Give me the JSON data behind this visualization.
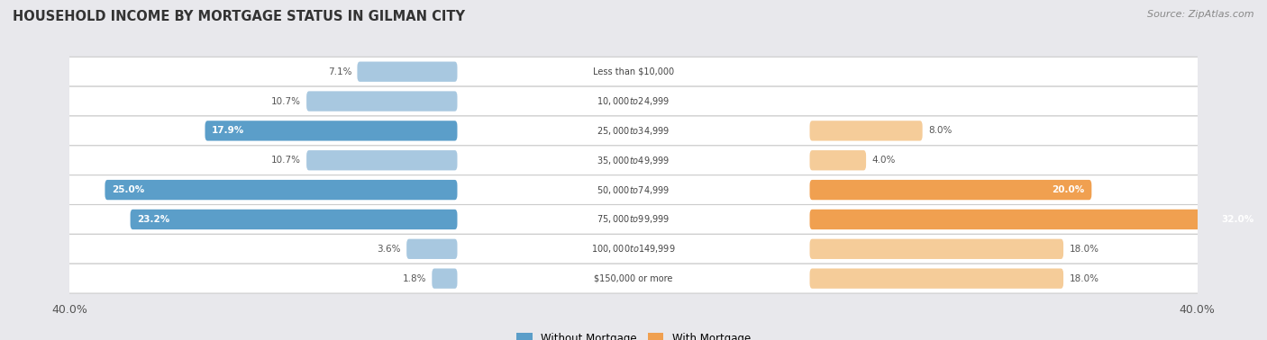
{
  "title": "HOUSEHOLD INCOME BY MORTGAGE STATUS IN GILMAN CITY",
  "source": "Source: ZipAtlas.com",
  "categories": [
    "Less than $10,000",
    "$10,000 to $24,999",
    "$25,000 to $34,999",
    "$35,000 to $49,999",
    "$50,000 to $74,999",
    "$75,000 to $99,999",
    "$100,000 to $149,999",
    "$150,000 or more"
  ],
  "without_mortgage": [
    7.1,
    10.7,
    17.9,
    10.7,
    25.0,
    23.2,
    3.6,
    1.8
  ],
  "with_mortgage": [
    0.0,
    0.0,
    8.0,
    4.0,
    20.0,
    32.0,
    18.0,
    18.0
  ],
  "color_without_dark": "#5b9ec9",
  "color_without_light": "#a8c8e0",
  "color_with_dark": "#f0a050",
  "color_with_light": "#f5cc99",
  "axis_max": 40.0,
  "bg_color": "#e8e8ec",
  "row_bg_color": "#ffffff",
  "title_color": "#333333",
  "label_color": "#555555",
  "source_color": "#888888",
  "without_dark_threshold": 15.0,
  "with_dark_threshold": 20.0
}
